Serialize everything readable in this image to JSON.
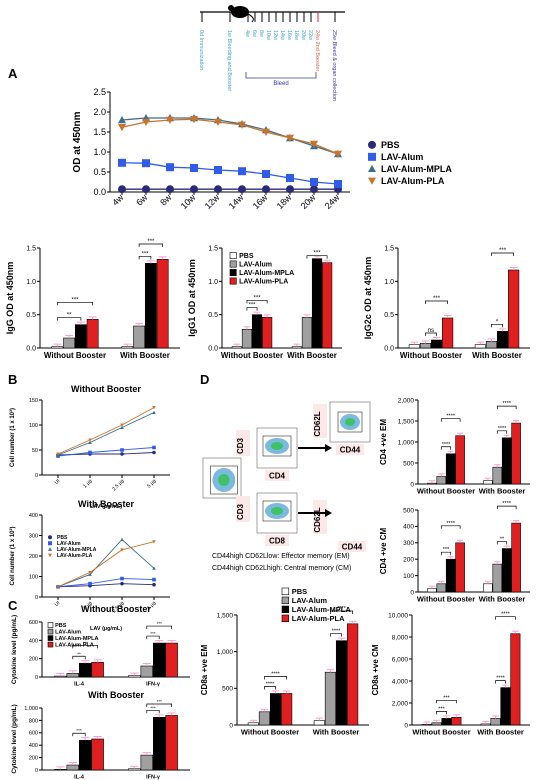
{
  "panel_labels": {
    "A": "A",
    "B": "B",
    "C": "C",
    "D": "D"
  },
  "timeline": {
    "labels": [
      "0d Immunization",
      "1w Bleeding and Booster",
      "4w",
      "6w",
      "8w",
      "10w",
      "12w",
      "14w",
      "16w",
      "18w",
      "20w",
      "22w",
      "24w 2nd Booster",
      "25w Bleed & organ collection"
    ],
    "bleed_label": "Bleed"
  },
  "colors": {
    "PBS": "#2b2b7a",
    "LAV-Alum": "#2f5de8",
    "LAV-Alum-MPLA": "#3d6e8c",
    "LAV-Alum-PLA": "#c8742a",
    "bar_pbs": "#ffffff",
    "bar_alum": "#a0a0a0",
    "bar_mpla": "#000000",
    "bar_pla": "#e02020",
    "err": "#ff9ccf"
  },
  "groups": [
    "PBS",
    "LAV-Alum",
    "LAV-Alum-MPLA",
    "LAV-Alum-PLA"
  ],
  "flow": {
    "cd3": "CD3",
    "cd4": "CD4",
    "cd8": "CD8",
    "cd62l": "CD62L",
    "cd44": "CD44",
    "em_def": "CD44high CD62Llow: Effector memory (EM)",
    "cm_def": "CD44high CD62Lhigh: Central memory (CM)"
  },
  "chart_data": [
    {
      "id": "A-line",
      "type": "line",
      "title": "",
      "ylabel": "OD at 450nm",
      "xlabel": "",
      "categories": [
        "4w",
        "6w",
        "8w",
        "10w",
        "12w",
        "14w",
        "16w",
        "18w",
        "20w",
        "24w"
      ],
      "ylim": [
        0,
        2.5
      ],
      "yticks": [
        "0.0",
        "0.5",
        "1.0",
        "1.5",
        "2.0",
        "2.5"
      ],
      "series": [
        {
          "name": "PBS",
          "values": [
            0.07,
            0.07,
            0.07,
            0.07,
            0.07,
            0.07,
            0.07,
            0.07,
            0.07,
            0.07
          ]
        },
        {
          "name": "LAV-Alum",
          "values": [
            0.73,
            0.72,
            0.62,
            0.6,
            0.55,
            0.52,
            0.45,
            0.35,
            0.25,
            0.2
          ]
        },
        {
          "name": "LAV-Alum-MPLA",
          "values": [
            1.8,
            1.85,
            1.85,
            1.85,
            1.8,
            1.7,
            1.55,
            1.35,
            1.15,
            0.95
          ]
        },
        {
          "name": "LAV-Alum-PLA",
          "values": [
            1.62,
            1.75,
            1.8,
            1.82,
            1.75,
            1.68,
            1.5,
            1.35,
            1.2,
            0.95
          ]
        }
      ]
    },
    {
      "id": "A-IgG",
      "type": "bar",
      "ylabel": "IgG OD at 450nm",
      "categories": [
        "Without Booster",
        "With Booster"
      ],
      "ylim": [
        0,
        1.5
      ],
      "yticks": [
        "0.0",
        "0.5",
        "1.0",
        "1.5"
      ],
      "series": [
        {
          "name": "PBS",
          "values": [
            0.02,
            0.02
          ]
        },
        {
          "name": "LAV-Alum",
          "values": [
            0.15,
            0.33
          ]
        },
        {
          "name": "LAV-Alum-MPLA",
          "values": [
            0.35,
            1.27
          ]
        },
        {
          "name": "LAV-Alum-PLA",
          "values": [
            0.43,
            1.33
          ]
        }
      ],
      "sig": [
        {
          "g": 0,
          "a": 0,
          "b": 2,
          "t": "**",
          "lvl": 0
        },
        {
          "g": 0,
          "a": 0,
          "b": 3,
          "t": "***",
          "lvl": 1
        },
        {
          "g": 1,
          "a": 1,
          "b": 2,
          "t": "***",
          "lvl": 0
        },
        {
          "g": 1,
          "a": 1,
          "b": 3,
          "t": "***",
          "lvl": 1
        }
      ]
    },
    {
      "id": "A-IgG1",
      "type": "bar",
      "ylabel": "IgG1 OD at 450nm",
      "categories": [
        "Without Booster",
        "With Booster"
      ],
      "ylim": [
        0,
        1.5
      ],
      "yticks": [
        "0.0",
        "0.5",
        "1.0",
        "1.5"
      ],
      "series": [
        {
          "name": "PBS",
          "values": [
            0.02,
            0.02
          ]
        },
        {
          "name": "LAV-Alum",
          "values": [
            0.28,
            0.46
          ]
        },
        {
          "name": "LAV-Alum-MPLA",
          "values": [
            0.5,
            1.34
          ]
        },
        {
          "name": "LAV-Alum-PLA",
          "values": [
            0.46,
            1.28
          ]
        }
      ],
      "sig": [
        {
          "g": 0,
          "a": 1,
          "b": 2,
          "t": "***",
          "lvl": 0
        },
        {
          "g": 0,
          "a": 1,
          "b": 3,
          "t": "***",
          "lvl": 1
        },
        {
          "g": 1,
          "a": 1,
          "b": 3,
          "t": "***",
          "lvl": 0
        }
      ],
      "legend": true
    },
    {
      "id": "A-IgG2c",
      "type": "bar",
      "ylabel": "IgG2c OD at 450nm",
      "categories": [
        "Without Booster",
        "With Booster"
      ],
      "ylim": [
        0,
        1.5
      ],
      "yticks": [
        "0.0",
        "0.5",
        "1.0",
        "1.5"
      ],
      "series": [
        {
          "name": "PBS",
          "values": [
            0.05,
            0.05
          ]
        },
        {
          "name": "LAV-Alum",
          "values": [
            0.07,
            0.1
          ]
        },
        {
          "name": "LAV-Alum-MPLA",
          "values": [
            0.12,
            0.25
          ]
        },
        {
          "name": "LAV-Alum-PLA",
          "values": [
            0.45,
            1.17
          ]
        }
      ],
      "sig": [
        {
          "g": 0,
          "a": 1,
          "b": 2,
          "t": "ns",
          "lvl": 0
        },
        {
          "g": 0,
          "a": 1,
          "b": 3,
          "t": "***",
          "lvl": 1
        },
        {
          "g": 1,
          "a": 1,
          "b": 2,
          "t": "*",
          "lvl": 0
        },
        {
          "g": 1,
          "a": 1,
          "b": 3,
          "t": "***",
          "lvl": 1
        }
      ]
    },
    {
      "id": "B-without",
      "type": "line",
      "title": "Without Booster",
      "ylabel": "Cell number (1 x 10³)",
      "xlabel": "LAV (µg/mL)",
      "categories": [
        "UI",
        "1 µg",
        "2.5 µg",
        "5 µg"
      ],
      "ylim": [
        0,
        150
      ],
      "yticks": [
        "0",
        "50",
        "100",
        "150"
      ],
      "series": [
        {
          "name": "PBS",
          "values": [
            40,
            42,
            42,
            45
          ]
        },
        {
          "name": "LAV-Alum",
          "values": [
            38,
            45,
            50,
            55
          ]
        },
        {
          "name": "LAV-Alum-MPLA",
          "values": [
            40,
            65,
            95,
            125
          ]
        },
        {
          "name": "LAV-Alum-PLA",
          "values": [
            42,
            70,
            100,
            135
          ]
        }
      ]
    },
    {
      "id": "B-with",
      "type": "line",
      "title": "With Booster",
      "ylabel": "Cell number (1 x 10³)",
      "xlabel": "LAV (µg/mL)",
      "categories": [
        "UI",
        "1 µg",
        "2.5 µg",
        "5 µg"
      ],
      "ylim": [
        0,
        400
      ],
      "yticks": [
        "0",
        "100",
        "200",
        "300",
        "400"
      ],
      "series": [
        {
          "name": "PBS",
          "values": [
            50,
            55,
            65,
            60
          ]
        },
        {
          "name": "LAV-Alum",
          "values": [
            50,
            65,
            90,
            85
          ]
        },
        {
          "name": "LAV-Alum-MPLA",
          "values": [
            50,
            110,
            280,
            140
          ]
        },
        {
          "name": "LAV-Alum-PLA",
          "values": [
            50,
            120,
            230,
            270
          ]
        }
      ],
      "legend": true
    },
    {
      "id": "C-without",
      "type": "bar",
      "title": "Without Booster",
      "ylabel": "Cytokine level (pg/mL)",
      "categories": [
        "IL-4",
        "IFN-γ"
      ],
      "ylim": [
        0,
        600
      ],
      "yticks": [
        "0",
        "200",
        "400",
        "600"
      ],
      "series": [
        {
          "name": "PBS",
          "values": [
            10,
            15
          ]
        },
        {
          "name": "LAV-Alum",
          "values": [
            40,
            120
          ]
        },
        {
          "name": "LAV-Alum-MPLA",
          "values": [
            150,
            370
          ]
        },
        {
          "name": "LAV-Alum-PLA",
          "values": [
            160,
            370
          ]
        }
      ],
      "sig": [
        {
          "g": 0,
          "a": 1,
          "b": 2,
          "t": "**",
          "lvl": 0
        },
        {
          "g": 0,
          "a": 1,
          "b": 3,
          "t": "***",
          "lvl": 1
        },
        {
          "g": 1,
          "a": 1,
          "b": 2,
          "t": "***",
          "lvl": 0
        },
        {
          "g": 1,
          "a": 1,
          "b": 3,
          "t": "***",
          "lvl": 1
        }
      ],
      "legend": true
    },
    {
      "id": "C-with",
      "type": "bar",
      "title": "With Booster",
      "ylabel": "Cytokine level (pg/mL)",
      "categories": [
        "IL-4",
        "IFN-γ"
      ],
      "ylim": [
        0,
        1000
      ],
      "yticks": [
        "0",
        "200",
        "400",
        "600",
        "800",
        "1,000"
      ],
      "series": [
        {
          "name": "PBS",
          "values": [
            10,
            20
          ]
        },
        {
          "name": "LAV-Alum",
          "values": [
            80,
            240
          ]
        },
        {
          "name": "LAV-Alum-MPLA",
          "values": [
            480,
            850
          ]
        },
        {
          "name": "LAV-Alum-PLA",
          "values": [
            500,
            880
          ]
        }
      ],
      "sig": [
        {
          "g": 0,
          "a": 1,
          "b": 2,
          "t": "***",
          "lvl": 0
        },
        {
          "g": 1,
          "a": 1,
          "b": 2,
          "t": "***",
          "lvl": 0
        },
        {
          "g": 1,
          "a": 1,
          "b": 3,
          "t": "***",
          "lvl": 1
        }
      ]
    },
    {
      "id": "D-CD4EM",
      "type": "bar",
      "ylabel": "CD4 +ve EM",
      "categories": [
        "Without Booster",
        "With Booster"
      ],
      "ylim": [
        0,
        2000
      ],
      "yticks": [
        "0",
        "500",
        "1,000",
        "1,500",
        "2,000"
      ],
      "series": [
        {
          "name": "PBS",
          "values": [
            20,
            80
          ]
        },
        {
          "name": "LAV-Alum",
          "values": [
            180,
            400
          ]
        },
        {
          "name": "LAV-Alum-MPLA",
          "values": [
            720,
            1100
          ]
        },
        {
          "name": "LAV-Alum-PLA",
          "values": [
            1150,
            1450
          ]
        }
      ],
      "sig": [
        {
          "g": 0,
          "a": 1,
          "b": 2,
          "t": "****",
          "lvl": 0
        },
        {
          "g": 0,
          "a": 1,
          "b": 3,
          "t": "****",
          "lvl": 1
        },
        {
          "g": 1,
          "a": 1,
          "b": 2,
          "t": "****",
          "lvl": 0
        },
        {
          "g": 1,
          "a": 1,
          "b": 3,
          "t": "****",
          "lvl": 1
        }
      ]
    },
    {
      "id": "D-CD4CM",
      "type": "bar",
      "ylabel": "CD4 +ve CM",
      "categories": [
        "Without Booster",
        "With Booster"
      ],
      "ylim": [
        0,
        500
      ],
      "yticks": [
        "0",
        "100",
        "200",
        "300",
        "400",
        "500"
      ],
      "series": [
        {
          "name": "PBS",
          "values": [
            20,
            50
          ]
        },
        {
          "name": "LAV-Alum",
          "values": [
            50,
            170
          ]
        },
        {
          "name": "LAV-Alum-MPLA",
          "values": [
            200,
            265
          ]
        },
        {
          "name": "LAV-Alum-PLA",
          "values": [
            300,
            420
          ]
        }
      ],
      "sig": [
        {
          "g": 0,
          "a": 1,
          "b": 2,
          "t": "***",
          "lvl": 0
        },
        {
          "g": 0,
          "a": 1,
          "b": 3,
          "t": "****",
          "lvl": 1
        },
        {
          "g": 1,
          "a": 1,
          "b": 2,
          "t": "**",
          "lvl": 0
        },
        {
          "g": 1,
          "a": 1,
          "b": 3,
          "t": "****",
          "lvl": 1
        }
      ]
    },
    {
      "id": "D-CD8EM",
      "type": "bar",
      "ylabel": "CD8a +ve EM",
      "categories": [
        "Without Booster",
        "With Booster"
      ],
      "ylim": [
        0,
        1500
      ],
      "yticks": [
        "0",
        "500",
        "1,000",
        "1,500"
      ],
      "series": [
        {
          "name": "PBS",
          "values": [
            30,
            60
          ]
        },
        {
          "name": "LAV-Alum",
          "values": [
            180,
            720
          ]
        },
        {
          "name": "LAV-Alum-MPLA",
          "values": [
            430,
            1150
          ]
        },
        {
          "name": "LAV-Alum-PLA",
          "values": [
            430,
            1380
          ]
        }
      ],
      "sig": [
        {
          "g": 0,
          "a": 1,
          "b": 2,
          "t": "****",
          "lvl": 0
        },
        {
          "g": 0,
          "a": 1,
          "b": 3,
          "t": "****",
          "lvl": 1
        },
        {
          "g": 1,
          "a": 1,
          "b": 2,
          "t": "****",
          "lvl": 0
        },
        {
          "g": 1,
          "a": 1,
          "b": 3,
          "t": "****",
          "lvl": 1
        }
      ],
      "legend": true
    },
    {
      "id": "D-CD8CM",
      "type": "bar",
      "ylabel": "CD8a +ve CM",
      "categories": [
        "Without Booster",
        "With Booster"
      ],
      "ylim": [
        0,
        10000
      ],
      "yticks": [
        "0",
        "2,000",
        "4,000",
        "6,000",
        "8,000",
        "10,000"
      ],
      "series": [
        {
          "name": "PBS",
          "values": [
            50,
            100
          ]
        },
        {
          "name": "LAV-Alum",
          "values": [
            200,
            600
          ]
        },
        {
          "name": "LAV-Alum-MPLA",
          "values": [
            600,
            3400
          ]
        },
        {
          "name": "LAV-Alum-PLA",
          "values": [
            700,
            8300
          ]
        }
      ],
      "sig": [
        {
          "g": 0,
          "a": 1,
          "b": 2,
          "t": "***",
          "lvl": 0
        },
        {
          "g": 0,
          "a": 1,
          "b": 3,
          "t": "***",
          "lvl": 1
        },
        {
          "g": 1,
          "a": 1,
          "b": 2,
          "t": "****",
          "lvl": 0
        },
        {
          "g": 1,
          "a": 1,
          "b": 3,
          "t": "****",
          "lvl": 1
        }
      ]
    }
  ]
}
